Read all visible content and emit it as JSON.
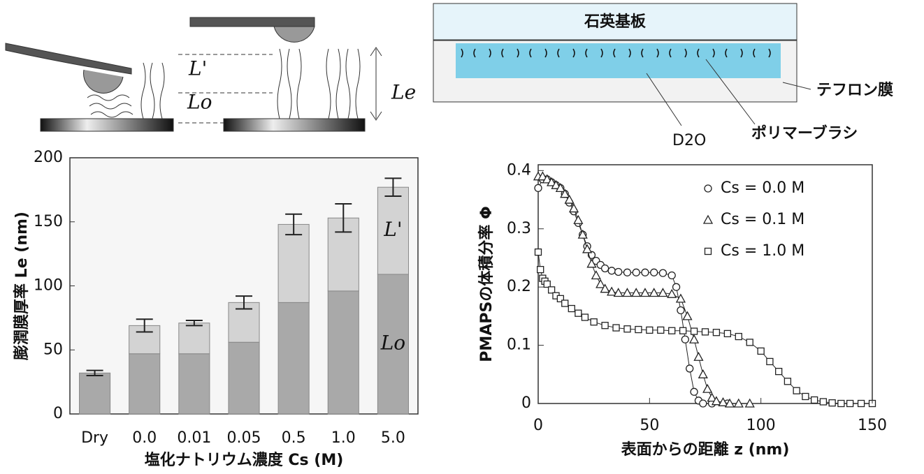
{
  "diagrams": {
    "afm": {
      "l_prime": "L'",
      "l_o": "Lo",
      "l_e": "Le"
    },
    "cell": {
      "quartz": "石英基板",
      "teflon": "テフロン膜",
      "brush": "ポリマーブラシ",
      "d2o": "D2O"
    }
  },
  "chart_data": [
    {
      "type": "bar",
      "stacked": true,
      "ylabel": "膨潤膜厚率 Le (nm)",
      "xlabel": "塩化ナトリウム濃度 Cs (M)",
      "categories": [
        "Dry",
        "0.0",
        "0.01",
        "0.05",
        "0.5",
        "1.0",
        "5.0"
      ],
      "series": [
        {
          "name": "Lo",
          "color": "#a9a9a9",
          "values": [
            32,
            47,
            47,
            56,
            87,
            96,
            109
          ]
        },
        {
          "name": "L'",
          "color": "#d3d3d3",
          "values": [
            null,
            22,
            24,
            31,
            61,
            57,
            68
          ]
        }
      ],
      "errors": [
        2,
        5,
        2,
        5,
        8,
        11,
        7
      ],
      "ylim": [
        0,
        200
      ],
      "yticks": [
        0,
        50,
        100,
        150,
        200
      ],
      "grid": false
    },
    {
      "type": "line",
      "markers": true,
      "ylabel": "PMAPSの体積分率 Φ",
      "xlabel": "表面からの距離 z (nm)",
      "legend": "upper right",
      "series": [
        {
          "name": "Cs = 0.0 M",
          "marker": "circle",
          "color": "#222222",
          "x": [
            0,
            2,
            4,
            6,
            8,
            10,
            12,
            14,
            16,
            18,
            20,
            22,
            24,
            26,
            28,
            30,
            33,
            36,
            40,
            44,
            48,
            52,
            56,
            60,
            62,
            64,
            66,
            68,
            70,
            72,
            74,
            78,
            85
          ],
          "values": [
            0.37,
            0.385,
            0.385,
            0.38,
            0.375,
            0.37,
            0.36,
            0.345,
            0.33,
            0.31,
            0.29,
            0.27,
            0.255,
            0.245,
            0.238,
            0.232,
            0.228,
            0.226,
            0.225,
            0.225,
            0.225,
            0.225,
            0.224,
            0.22,
            0.2,
            0.16,
            0.11,
            0.06,
            0.02,
            0.005,
            0,
            0,
            0
          ]
        },
        {
          "name": "Cs = 0.1 M",
          "marker": "triangle",
          "color": "#222222",
          "x": [
            0,
            2,
            4,
            6,
            8,
            10,
            12,
            14,
            16,
            18,
            20,
            22,
            24,
            26,
            28,
            30,
            33,
            36,
            40,
            44,
            48,
            52,
            56,
            60,
            64,
            67,
            70,
            72,
            74,
            76,
            78,
            80,
            83,
            86,
            90,
            95
          ],
          "values": [
            0.39,
            0.39,
            0.385,
            0.38,
            0.375,
            0.37,
            0.36,
            0.35,
            0.335,
            0.315,
            0.29,
            0.265,
            0.24,
            0.22,
            0.205,
            0.197,
            0.192,
            0.19,
            0.19,
            0.19,
            0.19,
            0.19,
            0.19,
            0.188,
            0.18,
            0.15,
            0.11,
            0.08,
            0.05,
            0.025,
            0.01,
            0.004,
            0.002,
            0,
            0,
            0
          ]
        },
        {
          "name": "Cs = 1.0 M",
          "marker": "square",
          "color": "#222222",
          "x": [
            0,
            1,
            2,
            3,
            4,
            6,
            8,
            10,
            12,
            15,
            18,
            21,
            25,
            30,
            35,
            40,
            45,
            50,
            55,
            60,
            65,
            70,
            75,
            80,
            85,
            90,
            95,
            100,
            104,
            108,
            112,
            116,
            120,
            124,
            128,
            132,
            136,
            140,
            145,
            150
          ],
          "values": [
            0.26,
            0.23,
            0.215,
            0.21,
            0.205,
            0.195,
            0.185,
            0.18,
            0.172,
            0.163,
            0.155,
            0.148,
            0.14,
            0.134,
            0.13,
            0.128,
            0.127,
            0.126,
            0.126,
            0.125,
            0.125,
            0.124,
            0.123,
            0.122,
            0.12,
            0.115,
            0.105,
            0.09,
            0.072,
            0.055,
            0.038,
            0.022,
            0.012,
            0.006,
            0.003,
            0.001,
            0,
            0,
            0,
            0
          ]
        }
      ],
      "xlim": [
        0,
        150
      ],
      "xticks": [
        0,
        50,
        100,
        150
      ],
      "ylim": [
        0,
        0.41
      ],
      "yticks": [
        0,
        0.1,
        0.2,
        0.3,
        0.4
      ],
      "grid": false
    }
  ]
}
